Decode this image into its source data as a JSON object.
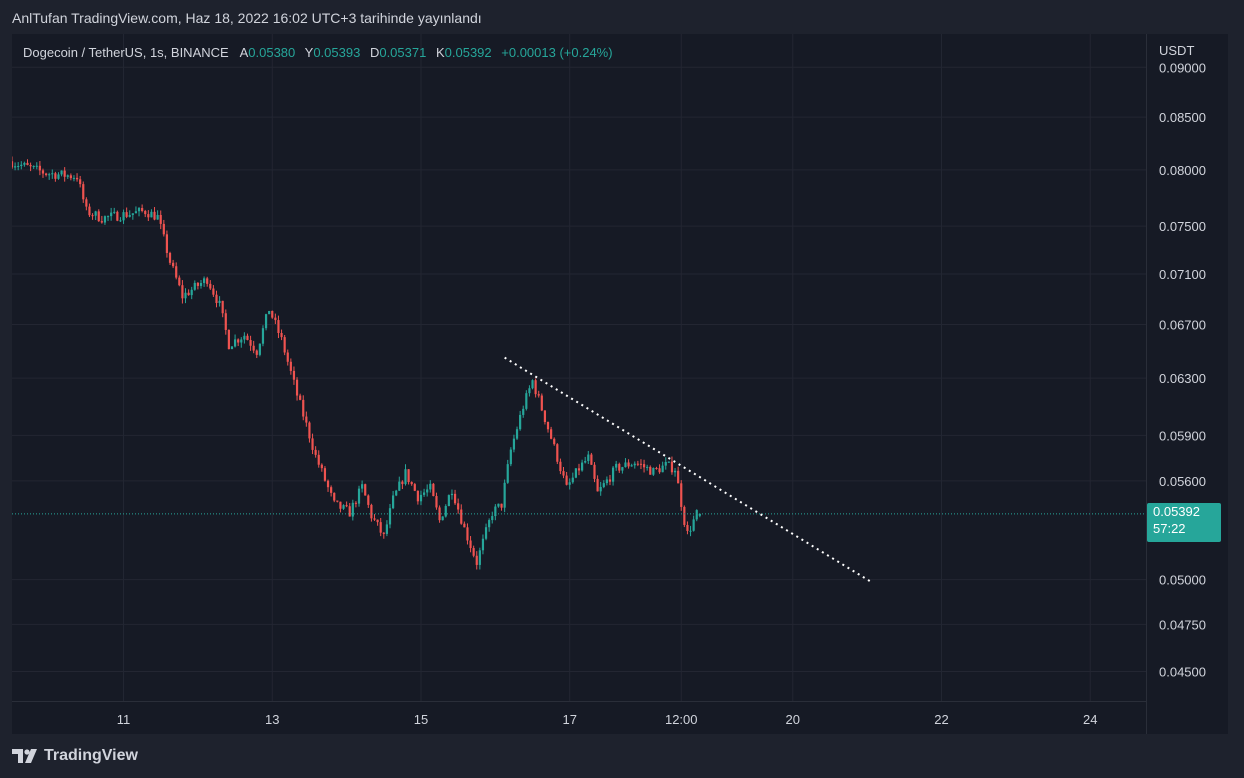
{
  "caption": "AnlTufan TradingView.com, Haz 18, 2022 16:02 UTC+3 tarihinde yayınlandı",
  "legend": {
    "symbol": "Dogecoin / TetherUS, 1s, BINANCE",
    "open_label": "A",
    "open": "0.05380",
    "high_label": "Y",
    "high": "0.05393",
    "low_label": "D",
    "low": "0.05371",
    "close_label": "K",
    "close": "0.05392",
    "change": "+0.00013 (+0.24%)"
  },
  "price_axis": {
    "currency": "USDT",
    "last_price": "0.05392",
    "countdown": "57:22"
  },
  "footer": {
    "brand": "TradingView"
  },
  "colors": {
    "up": "#26a69a",
    "down": "#ef5350",
    "background": "#161a25",
    "trendline": "#ffffff"
  },
  "chart_data": {
    "type": "candlestick",
    "title": "Dogecoin / TetherUS, 1s, BINANCE",
    "ylabel": "USDT",
    "y_scale": "log",
    "ylim": [
      0.0435,
      0.0935
    ],
    "xlim": [
      "2022-06-09T12:00",
      "2022-06-24T18:00"
    ],
    "y_ticks": [
      "0.09000",
      "0.08500",
      "0.08000",
      "0.07500",
      "0.07100",
      "0.06700",
      "0.06300",
      "0.05900",
      "0.05600",
      "0.05000",
      "0.04750",
      "0.04500"
    ],
    "x_ticks": [
      {
        "label": "11",
        "t": "2022-06-11T00:00"
      },
      {
        "label": "13",
        "t": "2022-06-13T00:00"
      },
      {
        "label": "15",
        "t": "2022-06-15T00:00"
      },
      {
        "label": "17",
        "t": "2022-06-17T00:00"
      },
      {
        "label": "12:00",
        "t": "2022-06-18T12:00"
      },
      {
        "label": "20",
        "t": "2022-06-20T00:00"
      },
      {
        "label": "22",
        "t": "2022-06-22T00:00"
      },
      {
        "label": "24",
        "t": "2022-06-24T00:00"
      }
    ],
    "start_time": "2022-06-09T12:00",
    "candle_interval": "1h",
    "path": [
      [
        "2022-06-09T12:00",
        0.0808
      ],
      [
        "2022-06-10T00:00",
        0.0797
      ],
      [
        "2022-06-10T10:00",
        0.0794
      ],
      [
        "2022-06-10T13:00",
        0.0763
      ],
      [
        "2022-06-10T18:00",
        0.0757
      ],
      [
        "2022-06-11T08:00",
        0.0763
      ],
      [
        "2022-06-11T12:00",
        0.0758
      ],
      [
        "2022-06-11T16:00",
        0.072
      ],
      [
        "2022-06-11T20:00",
        0.0692
      ],
      [
        "2022-06-12T04:00",
        0.0706
      ],
      [
        "2022-06-12T08:00",
        0.0685
      ],
      [
        "2022-06-12T11:00",
        0.0655
      ],
      [
        "2022-06-12T16:00",
        0.0662
      ],
      [
        "2022-06-12T20:00",
        0.065
      ],
      [
        "2022-06-13T00:00",
        0.0682
      ],
      [
        "2022-06-13T04:00",
        0.0658
      ],
      [
        "2022-06-13T09:00",
        0.0618
      ],
      [
        "2022-06-13T15:00",
        0.0576
      ],
      [
        "2022-06-13T21:00",
        0.0545
      ],
      [
        "2022-06-14T02:00",
        0.054
      ],
      [
        "2022-06-14T06:00",
        0.0556
      ],
      [
        "2022-06-14T09:00",
        0.0538
      ],
      [
        "2022-06-14T13:00",
        0.0525
      ],
      [
        "2022-06-14T16:00",
        0.0548
      ],
      [
        "2022-06-14T20:00",
        0.0565
      ],
      [
        "2022-06-15T00:00",
        0.055
      ],
      [
        "2022-06-15T04:00",
        0.0555
      ],
      [
        "2022-06-15T07:00",
        0.0535
      ],
      [
        "2022-06-15T11:00",
        0.0555
      ],
      [
        "2022-06-15T15:00",
        0.053
      ],
      [
        "2022-06-15T19:00",
        0.051
      ],
      [
        "2022-06-16T00:00",
        0.054
      ],
      [
        "2022-06-16T03:00",
        0.0545
      ],
      [
        "2022-06-16T06:00",
        0.058
      ],
      [
        "2022-06-16T10:00",
        0.061
      ],
      [
        "2022-06-16T13:00",
        0.0628
      ],
      [
        "2022-06-16T18:00",
        0.0595
      ],
      [
        "2022-06-17T00:00",
        0.0555
      ],
      [
        "2022-06-17T04:00",
        0.0568
      ],
      [
        "2022-06-17T07:00",
        0.0575
      ],
      [
        "2022-06-17T10:00",
        0.0552
      ],
      [
        "2022-06-17T16:00",
        0.0568
      ],
      [
        "2022-06-17T22:00",
        0.0572
      ],
      [
        "2022-06-18T04:00",
        0.0566
      ],
      [
        "2022-06-18T08:00",
        0.057
      ],
      [
        "2022-06-18T11:00",
        0.0568
      ],
      [
        "2022-06-18T14:00",
        0.0535
      ],
      [
        "2022-06-18T15:00",
        0.0527
      ],
      [
        "2022-06-18T17:00",
        0.0535
      ],
      [
        "2022-06-18T18:00",
        0.0539
      ]
    ],
    "last_candle": {
      "t": "2022-06-18T18:00",
      "open": 0.0538,
      "high": 0.05393,
      "low": 0.05371,
      "close": 0.05392
    },
    "last_price_line": 0.05392,
    "trendline": {
      "from": [
        "2022-06-16T03:00",
        0.0645
      ],
      "to": [
        "2022-06-21T01:00",
        0.0499
      ],
      "style": "dotted"
    }
  }
}
